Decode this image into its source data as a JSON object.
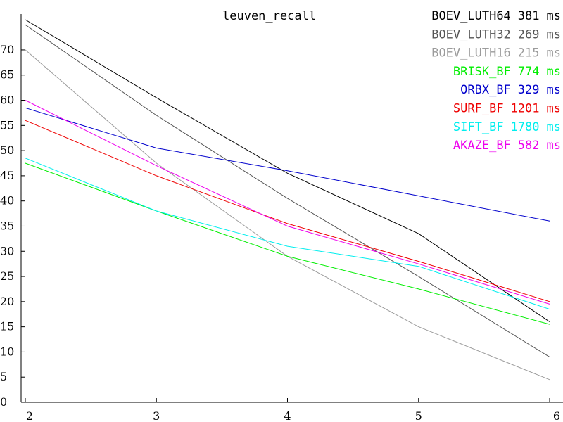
{
  "chart_data": {
    "type": "line",
    "title": "leuven_recall",
    "xlabel": "",
    "ylabel": "",
    "xlim": [
      2,
      6
    ],
    "ylim": [
      0,
      76
    ],
    "x_ticks": [
      2,
      3,
      4,
      5,
      6
    ],
    "x_tick_labels": [
      "2",
      "3",
      "4",
      "5",
      "6"
    ],
    "y_ticks": [
      0,
      5,
      10,
      15,
      20,
      25,
      30,
      35,
      40,
      45,
      50,
      55,
      60,
      65,
      70
    ],
    "y_tick_labels": [
      "0",
      "5",
      "10",
      "15",
      "20",
      "25",
      "30",
      "35",
      "40",
      "45",
      "50",
      "55",
      "60",
      "65",
      "70"
    ],
    "grid": false,
    "legend_position": "top-right",
    "x": [
      2,
      3,
      4,
      5,
      6
    ],
    "series": [
      {
        "name": "BOEV_LUTH64",
        "time": "381",
        "unit": "ms",
        "color": "#000000",
        "values": [
          76,
          60.5,
          45.5,
          33.5,
          16
        ]
      },
      {
        "name": "BOEV_LUTH32",
        "time": "269",
        "unit": "ms",
        "color": "#555555",
        "values": [
          75,
          57,
          40.5,
          25,
          9
        ]
      },
      {
        "name": "BOEV_LUTH16",
        "time": "215",
        "unit": "ms",
        "color": "#9b9b9b",
        "values": [
          70,
          47.5,
          29,
          15,
          4.5
        ]
      },
      {
        "name": "BRISK_BF",
        "time": "774",
        "unit": "ms",
        "color": "#00ee00",
        "values": [
          47.5,
          38,
          29,
          22.5,
          15.5
        ]
      },
      {
        "name": "ORBX_BF",
        "time": "329",
        "unit": "ms",
        "color": "#0000cc",
        "values": [
          58.5,
          50.5,
          46,
          41,
          36
        ]
      },
      {
        "name": "SURF_BF",
        "time": "1201",
        "unit": "ms",
        "color": "#ee0000",
        "values": [
          56,
          45,
          35.5,
          28,
          20
        ]
      },
      {
        "name": "SIFT_BF",
        "time": "1780",
        "unit": "ms",
        "color": "#00eeee",
        "values": [
          48.5,
          38,
          31,
          27,
          18.5
        ]
      },
      {
        "name": "AKAZE_BF",
        "time": "582",
        "unit": "ms",
        "color": "#ee00ee",
        "values": [
          60,
          47,
          35,
          27.5,
          19.5
        ]
      }
    ]
  }
}
